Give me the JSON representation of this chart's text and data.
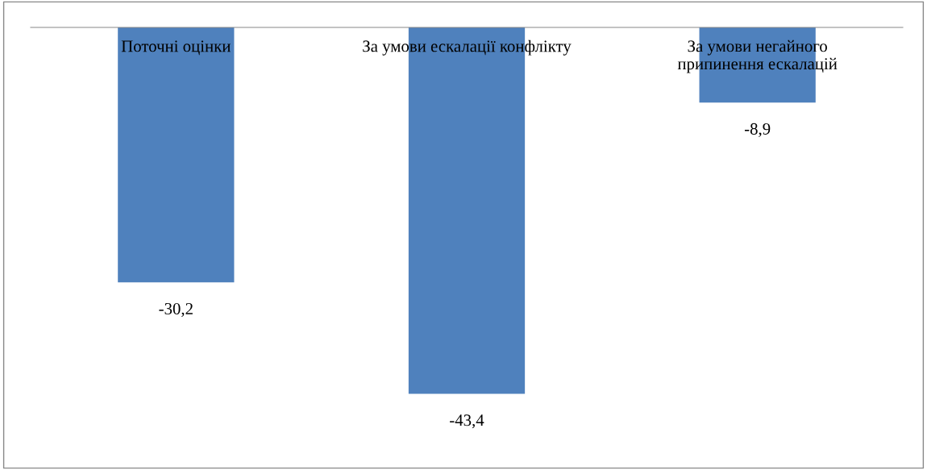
{
  "chart_data": {
    "type": "bar",
    "categories": [
      "Поточні оцінки",
      "За умови ескалації конфлікту",
      "За умови негайного\nприпинення ескалацій"
    ],
    "values": [
      -30.2,
      -43.4,
      -8.9
    ],
    "value_labels": [
      "-30,2",
      "-43,4",
      "-8,9"
    ],
    "color": "#4f81bd"
  }
}
